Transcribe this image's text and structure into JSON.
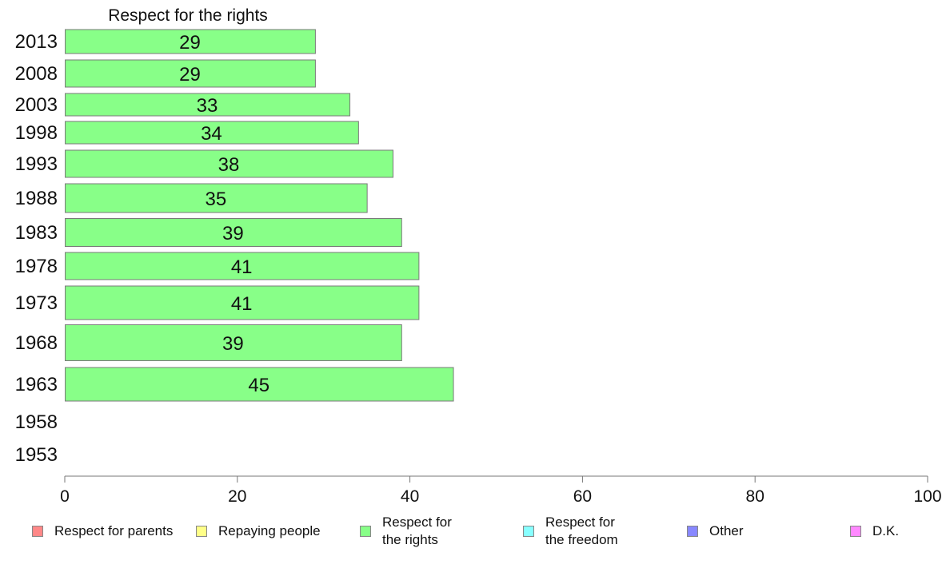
{
  "chart_data": {
    "type": "bar",
    "orientation": "horizontal",
    "title": "Respect for the rights",
    "categories": [
      "2013",
      "2008",
      "2003",
      "1998",
      "1993",
      "1988",
      "1983",
      "1978",
      "1973",
      "1968",
      "1963",
      "1958",
      "1953"
    ],
    "series": [
      {
        "name": "Respect for the rights",
        "color": "#88ff88",
        "values": [
          29,
          29,
          33,
          34,
          38,
          35,
          39,
          41,
          41,
          39,
          45,
          null,
          null
        ],
        "labels": [
          "29",
          "29",
          "33",
          "34",
          "38",
          "35",
          "39",
          "41",
          "41",
          "39",
          "45",
          "",
          ""
        ]
      }
    ],
    "xlim": [
      0,
      100
    ],
    "xticks": [
      "0",
      "20",
      "40",
      "60",
      "80",
      "100"
    ],
    "grid": false,
    "legend_placement": "bottom"
  },
  "legend": [
    {
      "label": "Respect for parents",
      "color": "#ff8888"
    },
    {
      "label": "Repaying people",
      "color": "#ffff88"
    },
    {
      "label": "Respect for\nthe rights",
      "color": "#88ff88"
    },
    {
      "label": "Respect for\nthe freedom",
      "color": "#88ffff"
    },
    {
      "label": "Other",
      "color": "#8888ff"
    },
    {
      "label": "D.K.",
      "color": "#ff88ff"
    }
  ]
}
